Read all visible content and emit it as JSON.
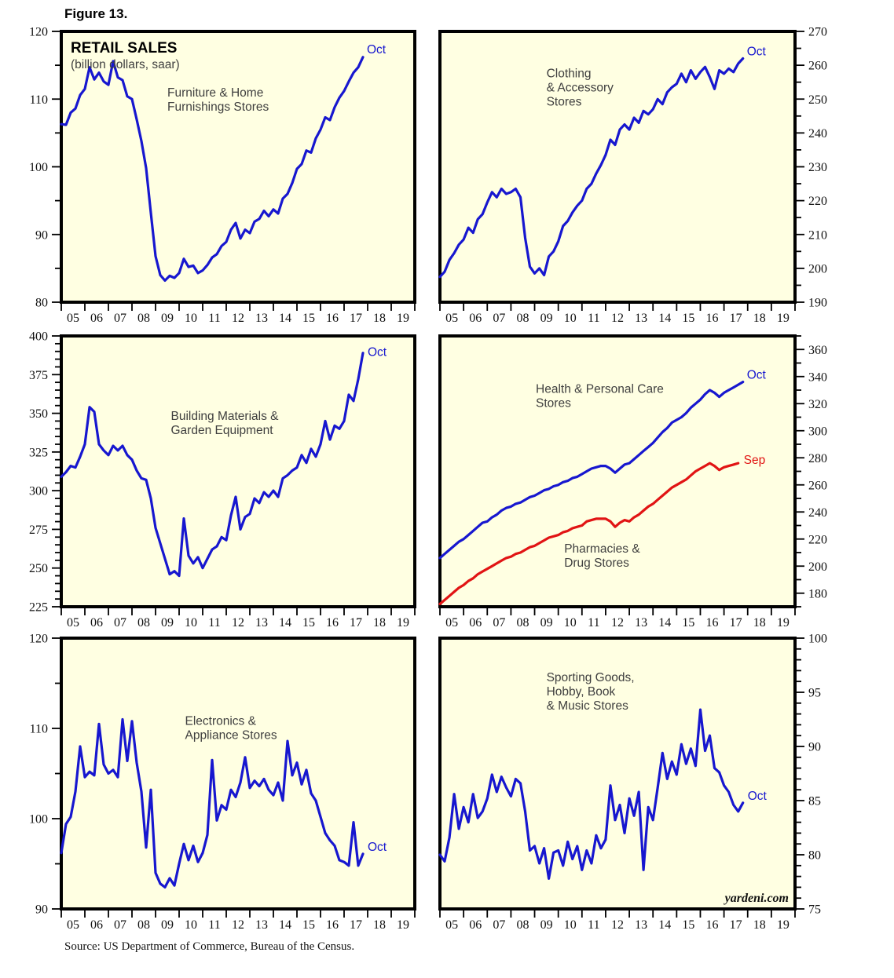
{
  "figure": {
    "label": "Figure 13.",
    "source": "Source: US Department of Commerce, Bureau of the Census."
  },
  "styles": {
    "plot_bg": "#FFFFE2",
    "frame_color": "#000000",
    "blue": "#1717CF",
    "red": "#E11414",
    "caption_color": "#3F3F3F",
    "tick_color": "#111111"
  },
  "chart_data": [
    {
      "type": "line",
      "title": "RETAIL SALES",
      "subtitle": "(billion dollars, saar)",
      "captions": [
        {
          "lines": [
            "Furniture & Home",
            "Furnishings Stores"
          ],
          "pos": [
            0.3,
            0.24
          ]
        }
      ],
      "axis_side": "left",
      "ylim": [
        80,
        120
      ],
      "ytick_major": 10,
      "ytick_minor": 5,
      "xlim": [
        2005,
        2020
      ],
      "xtick_labels": [
        "05",
        "06",
        "07",
        "08",
        "09",
        "10",
        "11",
        "12",
        "13",
        "14",
        "15",
        "16",
        "17",
        "18",
        "19"
      ],
      "series": [
        {
          "name": "Furniture & Home Furnishings Stores",
          "color": "#1717CF",
          "x_start": 2005,
          "x_step": 0.2,
          "end_label": {
            "text": "Oct",
            "dx": 5,
            "dy": -5
          },
          "values": [
            106.3,
            106.2,
            108.0,
            108.6,
            110.6,
            111.5,
            114.7,
            112.9,
            113.9,
            112.6,
            112.1,
            115.6,
            113.2,
            112.8,
            110.4,
            110.0,
            107.0,
            103.8,
            99.8,
            93.2,
            86.8,
            84.0,
            83.2,
            83.9,
            83.6,
            84.3,
            86.4,
            85.2,
            85.4,
            84.3,
            84.7,
            85.5,
            86.6,
            87.1,
            88.3,
            88.9,
            90.7,
            91.7,
            89.4,
            90.7,
            90.2,
            91.9,
            92.3,
            93.5,
            92.7,
            93.7,
            93.1,
            95.3,
            96.0,
            97.6,
            99.7,
            100.4,
            102.4,
            102.1,
            104.2,
            105.5,
            107.3,
            106.9,
            108.8,
            110.2,
            111.2,
            112.6,
            113.9,
            114.7,
            116.2
          ]
        }
      ]
    },
    {
      "type": "line",
      "captions": [
        {
          "lines": [
            "Clothing",
            "& Accessory",
            "Stores"
          ],
          "pos": [
            0.3,
            0.17
          ]
        }
      ],
      "axis_side": "right",
      "ylim": [
        190,
        270
      ],
      "ytick_major": 10,
      "ytick_minor": 5,
      "xlim": [
        2005,
        2020
      ],
      "xtick_labels": [
        "05",
        "06",
        "07",
        "08",
        "09",
        "10",
        "11",
        "12",
        "13",
        "14",
        "15",
        "16",
        "17",
        "18",
        "19"
      ],
      "series": [
        {
          "name": "Clothing & Accessory Stores",
          "color": "#1717CF",
          "x_start": 2005,
          "x_step": 0.2,
          "end_label": {
            "text": "Oct",
            "dx": 5,
            "dy": -4
          },
          "values": [
            197.5,
            199.0,
            202.5,
            204.5,
            207.0,
            208.5,
            212.0,
            210.5,
            214.5,
            216.0,
            219.5,
            222.5,
            221.0,
            223.5,
            222.0,
            222.5,
            223.5,
            221.0,
            209.0,
            200.5,
            198.5,
            200.0,
            198.0,
            203.5,
            205.0,
            208.0,
            212.5,
            214.0,
            216.5,
            218.5,
            220.0,
            223.5,
            225.0,
            228.0,
            230.5,
            233.5,
            238.0,
            236.5,
            241.0,
            242.5,
            241.0,
            244.5,
            243.0,
            246.5,
            245.5,
            247.0,
            250.0,
            248.5,
            252.0,
            253.5,
            254.5,
            257.5,
            255.0,
            258.5,
            256.0,
            258.0,
            259.5,
            256.5,
            253.0,
            258.5,
            257.5,
            259.0,
            258.0,
            260.5,
            262.0
          ]
        }
      ]
    },
    {
      "type": "line",
      "captions": [
        {
          "lines": [
            "Building Materials &",
            "Garden Equipment"
          ],
          "pos": [
            0.31,
            0.31
          ]
        }
      ],
      "axis_side": "left",
      "ylim": [
        225,
        400
      ],
      "ytick_major": 25,
      "ytick_minor": 5,
      "xlim": [
        2005,
        2020
      ],
      "xtick_labels": [
        "05",
        "06",
        "07",
        "08",
        "09",
        "10",
        "11",
        "12",
        "13",
        "14",
        "15",
        "16",
        "17",
        "18",
        "19"
      ],
      "series": [
        {
          "name": "Building Materials & Garden Equipment",
          "color": "#1717CF",
          "x_start": 2005,
          "x_step": 0.2,
          "end_label": {
            "text": "Oct",
            "dx": 6,
            "dy": 4
          },
          "values": [
            309,
            312,
            316,
            315,
            322,
            330,
            354,
            351,
            330,
            326,
            323,
            329,
            326,
            329,
            323,
            320,
            313,
            308,
            307,
            295,
            276,
            266,
            256,
            246,
            248,
            245,
            282,
            258,
            253,
            257,
            250,
            256,
            262,
            264,
            270,
            268,
            284,
            296,
            275,
            283,
            285,
            295,
            292,
            299,
            296,
            300,
            296,
            308,
            310,
            313,
            315,
            323,
            318,
            327,
            322,
            330,
            345,
            333,
            342,
            340,
            345,
            362,
            358,
            372,
            389
          ]
        }
      ]
    },
    {
      "type": "line",
      "captions": [
        {
          "lines": [
            "Health & Personal Care",
            "Stores"
          ],
          "pos": [
            0.27,
            0.21
          ]
        },
        {
          "lines": [
            "Pharmacies &",
            "Drug Stores"
          ],
          "pos": [
            0.35,
            0.8
          ]
        }
      ],
      "axis_side": "right",
      "ylim": [
        170,
        370
      ],
      "ytick_major": 20,
      "ytick_minor": 10,
      "xlim": [
        2005,
        2020
      ],
      "xtick_labels": [
        "05",
        "06",
        "07",
        "08",
        "09",
        "10",
        "11",
        "12",
        "13",
        "14",
        "15",
        "16",
        "17",
        "18",
        "19"
      ],
      "series": [
        {
          "name": "Health & Personal Care Stores",
          "color": "#1717CF",
          "x_start": 2005,
          "x_step": 0.2,
          "end_label": {
            "text": "Oct",
            "dx": 5,
            "dy": -4
          },
          "values": [
            206,
            209,
            212,
            215,
            218,
            220,
            223,
            226,
            229,
            232,
            233,
            236,
            238,
            241,
            243,
            244,
            246,
            247,
            249,
            251,
            252,
            254,
            256,
            257,
            259,
            260,
            262,
            263,
            265,
            266,
            268,
            270,
            272,
            273,
            274,
            274,
            272,
            269,
            272,
            275,
            276,
            279,
            282,
            285,
            288,
            291,
            295,
            299,
            302,
            306,
            308,
            310,
            313,
            317,
            320,
            323,
            327,
            330,
            328,
            325,
            328,
            330,
            332,
            334,
            336
          ]
        },
        {
          "name": "Pharmacies & Drug Stores",
          "color": "#E11414",
          "x_start": 2005,
          "x_step": 0.2,
          "end_label": {
            "text": "Sep",
            "dx": 7,
            "dy": 1
          },
          "values": [
            172,
            175,
            178,
            181,
            184,
            186,
            189,
            191,
            194,
            196,
            198,
            200,
            202,
            204,
            206,
            207,
            209,
            210,
            212,
            214,
            215,
            217,
            219,
            221,
            222,
            223,
            225,
            226,
            228,
            229,
            230,
            233,
            234,
            235,
            235,
            235,
            233,
            229,
            232,
            234,
            233,
            236,
            238,
            241,
            244,
            246,
            249,
            252,
            255,
            258,
            260,
            262,
            264,
            267,
            270,
            272,
            274,
            276,
            274,
            271,
            273,
            274,
            275,
            276
          ]
        }
      ]
    },
    {
      "type": "line",
      "captions": [
        {
          "lines": [
            "Electronics &",
            "Appliance Stores"
          ],
          "pos": [
            0.35,
            0.32
          ]
        }
      ],
      "axis_side": "left",
      "ylim": [
        90,
        120
      ],
      "ytick_major": 10,
      "ytick_minor": 5,
      "xlim": [
        2005,
        2020
      ],
      "xtick_labels": [
        "05",
        "06",
        "07",
        "08",
        "09",
        "10",
        "11",
        "12",
        "13",
        "14",
        "15",
        "16",
        "17",
        "18",
        "19"
      ],
      "series": [
        {
          "name": "Electronics & Appliance Stores",
          "color": "#1717CF",
          "x_start": 2005,
          "x_step": 0.2,
          "end_label": {
            "text": "Oct",
            "dx": 6,
            "dy": -4
          },
          "values": [
            96.2,
            99.4,
            100.2,
            103.0,
            108.0,
            104.6,
            105.2,
            104.8,
            110.5,
            106.0,
            105.0,
            105.4,
            104.6,
            111.0,
            106.4,
            110.8,
            106.2,
            103.0,
            96.8,
            103.2,
            94.0,
            92.8,
            92.4,
            93.4,
            92.6,
            95.0,
            97.2,
            95.4,
            97.0,
            95.2,
            96.2,
            98.2,
            106.5,
            99.8,
            101.5,
            101.0,
            103.2,
            102.4,
            104.0,
            106.8,
            103.4,
            104.2,
            103.6,
            104.4,
            103.2,
            102.6,
            104.0,
            102.0,
            108.6,
            104.8,
            106.2,
            103.8,
            105.4,
            102.8,
            102.0,
            100.2,
            98.4,
            97.6,
            97.0,
            95.4,
            95.2,
            94.8,
            99.6,
            94.8,
            96.1
          ]
        }
      ]
    },
    {
      "type": "line",
      "captions": [
        {
          "lines": [
            "Sporting Goods,",
            "Hobby, Book",
            "& Music Stores"
          ],
          "pos": [
            0.3,
            0.16
          ]
        }
      ],
      "axis_side": "right",
      "ylim": [
        75,
        100
      ],
      "ytick_major": 5,
      "ytick_minor": 1,
      "xlim": [
        2005,
        2020
      ],
      "xtick_labels": [
        "05",
        "06",
        "07",
        "08",
        "09",
        "10",
        "11",
        "12",
        "13",
        "14",
        "15",
        "16",
        "17",
        "18",
        "19"
      ],
      "watermark": "yardeni.com",
      "series": [
        {
          "name": "Sporting Goods, Hobby, Book & Music Stores",
          "color": "#1717CF",
          "x_start": 2005,
          "x_step": 0.2,
          "end_label": {
            "text": "Oct",
            "dx": 6,
            "dy": -4
          },
          "values": [
            80.0,
            79.4,
            81.6,
            85.6,
            82.4,
            84.4,
            83.0,
            85.6,
            83.4,
            84.0,
            85.2,
            87.4,
            85.8,
            87.2,
            86.2,
            85.4,
            87.0,
            86.6,
            84.0,
            80.4,
            80.8,
            79.2,
            80.6,
            77.8,
            80.2,
            80.4,
            79.0,
            81.2,
            79.6,
            80.8,
            78.6,
            80.4,
            79.2,
            81.8,
            80.6,
            81.4,
            86.4,
            83.2,
            84.6,
            82.0,
            85.2,
            83.6,
            85.8,
            78.6,
            84.4,
            83.2,
            86.2,
            89.4,
            87.0,
            88.6,
            87.4,
            90.2,
            88.4,
            89.8,
            88.2,
            93.4,
            89.6,
            91.0,
            88.0,
            87.6,
            86.4,
            85.8,
            84.6,
            84.0,
            84.8
          ]
        }
      ]
    }
  ]
}
